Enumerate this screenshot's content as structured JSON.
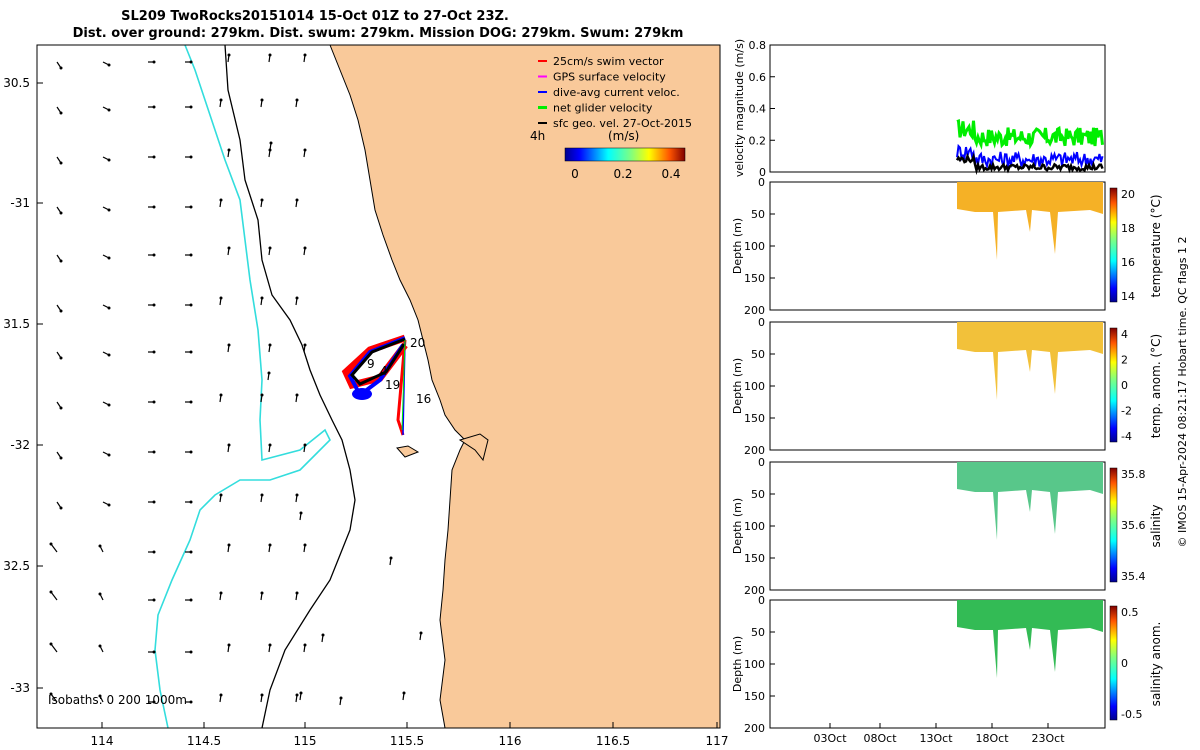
{
  "title": {
    "line1": "SL209 TwoRocks20151014 15-Oct 01Z to 27-Oct 23Z.",
    "line2": "Dist. over ground: 279km. Dist. swum: 279km. Mission DOG: 279km. Swum: 279km"
  },
  "colors": {
    "land": "#f9c99a",
    "isobath_200": "#000000",
    "isobath_1000": "#000000",
    "isobath_0": "#000000",
    "coast_cyan": "#33dddd",
    "swim": "#ff0000",
    "gps": "#ff00ff",
    "dive": "#0000ff",
    "net": "#00ee00",
    "geo": "#000000"
  },
  "chart_data": [
    {
      "type": "map",
      "xlabel_ticks": [
        "114",
        "114.5",
        "115",
        "115.5",
        "116",
        "116.5",
        "117"
      ],
      "ylabel_ticks": [
        "30.5",
        "-31",
        "31.5",
        "-32",
        "32.5",
        "-33"
      ],
      "xlim": [
        113.65,
        117.0
      ],
      "ylim": [
        -33.15,
        -30.45
      ],
      "legend": [
        {
          "label": "25cm/s swim vector",
          "color": "#ff0000"
        },
        {
          "label": "GPS surface velocity",
          "color": "#ff00ff"
        },
        {
          "label": "dive-avg current veloc.",
          "color": "#0000ff"
        },
        {
          "label": "net glider velocity",
          "color": "#00ee00"
        },
        {
          "label": "sfc geo. vel. 27-Oct-2015",
          "color": "#000000"
        }
      ],
      "legend_time_label": "4h",
      "colorbar": {
        "title": "(m/s)",
        "ticks": [
          "0",
          "0.2",
          "0.4"
        ],
        "range": [
          0,
          0.5
        ]
      },
      "isobaths_label": "Isobaths: 0   200  1000m",
      "day_labels": [
        {
          "text": "16",
          "lon": 115.57,
          "lat": -31.81
        },
        {
          "text": "19",
          "lon": 115.42,
          "lat": -31.76
        },
        {
          "text": "20",
          "lon": 115.55,
          "lat": -31.58
        },
        {
          "text": "9",
          "lon": 115.47,
          "lat": -31.65
        },
        {
          "text": "4",
          "lon": 115.4,
          "lat": -31.7
        }
      ]
    },
    {
      "type": "line",
      "ylabel": "velocity magnitude (m/s)",
      "ylim": [
        0,
        0.8
      ],
      "yticks": [
        "0",
        "0.2",
        "0.4",
        "0.6",
        "0.8"
      ],
      "series": [
        {
          "name": "net glider velocity",
          "color": "#00ee00",
          "approx_level": 0.22
        },
        {
          "name": "dive-avg current veloc.",
          "color": "#0000ff",
          "approx_level": 0.08
        },
        {
          "name": "sfc geo. vel.",
          "color": "#000000",
          "approx_level": 0.03
        }
      ]
    },
    {
      "type": "heatmap",
      "ylabel": "Depth (m)",
      "yticks": [
        "0",
        "50",
        "100",
        "150",
        "200"
      ],
      "colorbar_label": "temperature (°C)",
      "colorbar_ticks": [
        "14",
        "16",
        "18",
        "20"
      ],
      "base_color": "#f5b126"
    },
    {
      "type": "heatmap",
      "ylabel": "Depth (m)",
      "yticks": [
        "0",
        "50",
        "100",
        "150",
        "200"
      ],
      "colorbar_label": "temp. anom. (°C)",
      "colorbar_ticks": [
        "-4",
        "-2",
        "0",
        "2",
        "4"
      ],
      "base_color": "#f2c13a"
    },
    {
      "type": "heatmap",
      "ylabel": "Depth (m)",
      "yticks": [
        "0",
        "50",
        "100",
        "150",
        "200"
      ],
      "colorbar_label": "salinity",
      "colorbar_ticks": [
        "35.4",
        "35.6",
        "35.8"
      ],
      "base_color": "#58c78a"
    },
    {
      "type": "heatmap",
      "ylabel": "Depth (m)",
      "yticks": [
        "0",
        "50",
        "100",
        "150",
        "200"
      ],
      "colorbar_label": "salinity anom.",
      "colorbar_ticks": [
        "-0.5",
        "0",
        "0.5"
      ],
      "base_color": "#33bb55",
      "xticks": [
        "03Oct",
        "08Oct",
        "13Oct",
        "18Oct",
        "23Oct"
      ]
    }
  ],
  "footer": {
    "vertical_text": "© IMOS 15-Apr-2024 08:21:17 Hobart time. QC flags 1  2"
  }
}
